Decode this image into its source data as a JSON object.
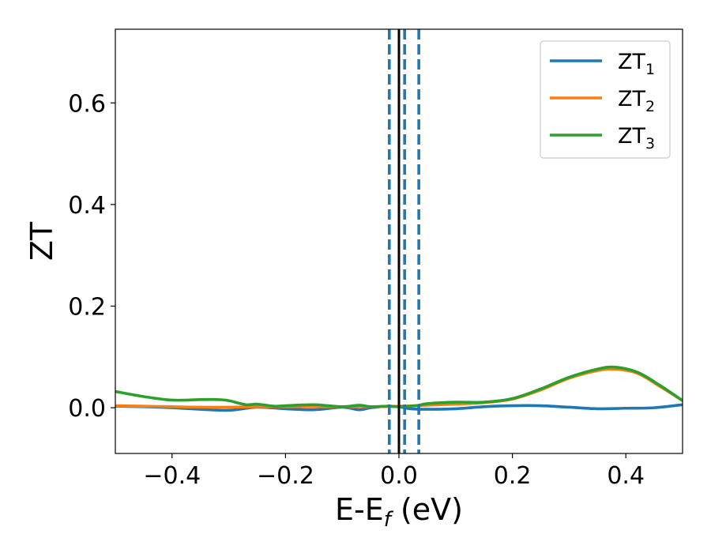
{
  "chart_data": {
    "type": "line",
    "xlabel": "E-E",
    "xlabel_sub": "f",
    "xlabel_unit": " (eV)",
    "ylabel": "ZT",
    "xlim": [
      -0.5,
      0.5
    ],
    "ylim": [
      -0.09,
      0.745
    ],
    "xticks": [
      -0.4,
      -0.2,
      0.0,
      0.2,
      0.4
    ],
    "xtick_labels": [
      "−0.4",
      "−0.2",
      "0.0",
      "0.2",
      "0.4"
    ],
    "yticks": [
      0.0,
      0.2,
      0.4,
      0.6
    ],
    "ytick_labels": [
      "0.0",
      "0.2",
      "0.4",
      "0.6"
    ],
    "grid": false,
    "legend_position": "top-right",
    "series": [
      {
        "name": "ZT",
        "name_sub": "1",
        "color": "#1f77b4",
        "x": [
          -0.5,
          -0.45,
          -0.4,
          -0.35,
          -0.3,
          -0.25,
          -0.2,
          -0.15,
          -0.1,
          -0.07,
          -0.05,
          -0.02,
          0.0,
          0.02,
          0.05,
          0.1,
          0.15,
          0.2,
          0.25,
          0.3,
          0.35,
          0.4,
          0.45,
          0.5
        ],
        "y": [
          0.003,
          0.002,
          0.0,
          -0.003,
          -0.005,
          0.001,
          -0.002,
          -0.004,
          0.001,
          -0.004,
          0.0,
          0.003,
          0.002,
          -0.002,
          -0.003,
          -0.002,
          0.002,
          0.004,
          0.004,
          0.001,
          -0.002,
          -0.001,
          0.0,
          0.006
        ]
      },
      {
        "name": "ZT",
        "name_sub": "2",
        "color": "#ff7f0e",
        "x": [
          -0.5,
          -0.45,
          -0.4,
          -0.35,
          -0.3,
          -0.25,
          -0.2,
          -0.15,
          -0.1,
          -0.05,
          0.0,
          0.05,
          0.1,
          0.15,
          0.2,
          0.25,
          0.3,
          0.35,
          0.38,
          0.42,
          0.46,
          0.5
        ],
        "y": [
          0.004,
          0.003,
          0.002,
          0.001,
          0.001,
          0.002,
          0.002,
          0.002,
          0.002,
          0.002,
          0.003,
          0.005,
          0.007,
          0.01,
          0.017,
          0.035,
          0.058,
          0.073,
          0.076,
          0.068,
          0.042,
          0.014
        ]
      },
      {
        "name": "ZT",
        "name_sub": "3",
        "color": "#2ca02c",
        "x": [
          -0.5,
          -0.45,
          -0.4,
          -0.35,
          -0.32,
          -0.3,
          -0.27,
          -0.25,
          -0.22,
          -0.2,
          -0.15,
          -0.1,
          -0.07,
          -0.05,
          -0.02,
          0.0,
          0.03,
          0.05,
          0.1,
          0.15,
          0.2,
          0.25,
          0.3,
          0.35,
          0.38,
          0.42,
          0.46,
          0.5
        ],
        "y": [
          0.032,
          0.022,
          0.015,
          0.016,
          0.016,
          0.014,
          0.006,
          0.007,
          0.003,
          0.004,
          0.006,
          0.002,
          0.005,
          0.002,
          0.003,
          0.002,
          0.004,
          0.008,
          0.011,
          0.011,
          0.018,
          0.037,
          0.06,
          0.076,
          0.08,
          0.07,
          0.044,
          0.014
        ]
      }
    ],
    "vlines": [
      {
        "x": 0.0,
        "style": "solid",
        "color": "#000000"
      },
      {
        "x": -0.017,
        "style": "dashed",
        "color": "#1f77b4"
      },
      {
        "x": 0.01,
        "style": "dashed",
        "color": "#1f77b4"
      },
      {
        "x": 0.035,
        "style": "dashed",
        "color": "#1f77b4"
      }
    ]
  }
}
